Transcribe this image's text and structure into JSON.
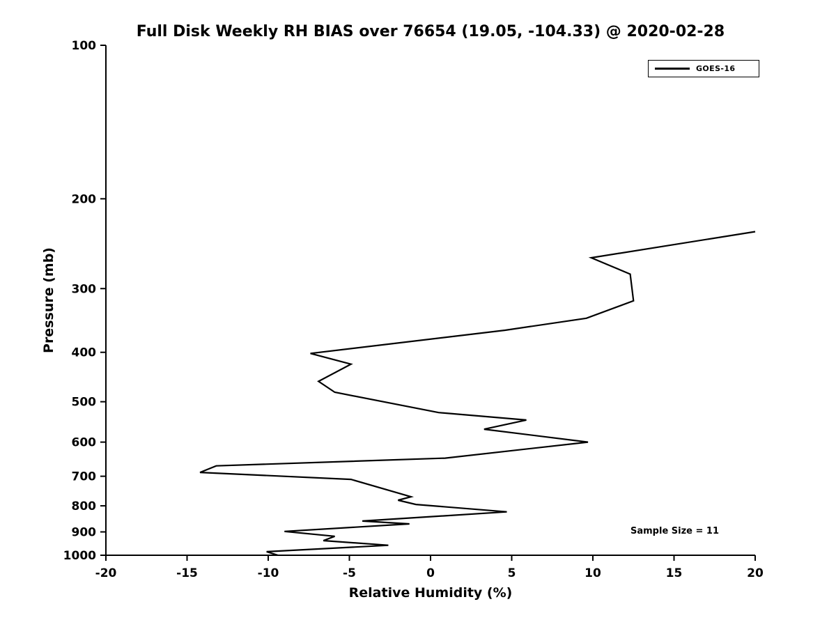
{
  "chart_data": {
    "type": "line",
    "title": "Full Disk Weekly RH BIAS over 76654 (19.05, -104.33) @ 2020-02-28",
    "xlabel": "Relative Humidity (%)",
    "ylabel": "Pressure (mb)",
    "xlim": [
      -20,
      20
    ],
    "x_ticks": [
      -20,
      -15,
      -10,
      -5,
      0,
      5,
      10,
      15,
      20
    ],
    "ylim": [
      100,
      1000
    ],
    "y_scale": "log",
    "y_direction": "reversed",
    "y_ticks": [
      100,
      200,
      300,
      400,
      500,
      600,
      700,
      800,
      900,
      1000
    ],
    "grid": false,
    "background": "#ffffff",
    "line_color": "#000000",
    "legend": {
      "position": "top-right",
      "entries": [
        "GOES-16"
      ]
    },
    "annotations": [
      {
        "text": "Sample Size = 11",
        "position": "bottom-right"
      }
    ],
    "series": [
      {
        "name": "GOES-16",
        "color": "#000000",
        "points": [
          [
            20.0,
            232
          ],
          [
            9.9,
            261
          ],
          [
            12.3,
            281
          ],
          [
            12.5,
            317
          ],
          [
            9.6,
            343
          ],
          [
            4.6,
            362
          ],
          [
            -7.4,
            402
          ],
          [
            -4.9,
            422
          ],
          [
            -6.9,
            456
          ],
          [
            -5.9,
            479
          ],
          [
            0.5,
            525
          ],
          [
            5.9,
            543
          ],
          [
            3.3,
            566
          ],
          [
            9.7,
            600
          ],
          [
            0.9,
            645
          ],
          [
            -13.2,
            668
          ],
          [
            -14.2,
            688
          ],
          [
            -4.9,
            710
          ],
          [
            -2.0,
            755
          ],
          [
            -1.2,
            768
          ],
          [
            -2.0,
            780
          ],
          [
            -0.9,
            795
          ],
          [
            4.7,
            822
          ],
          [
            -4.2,
            857
          ],
          [
            -1.3,
            868
          ],
          [
            -9.0,
            898
          ],
          [
            -5.9,
            918
          ],
          [
            -6.6,
            936
          ],
          [
            -2.6,
            956
          ],
          [
            -10.1,
            984
          ],
          [
            -9.4,
            1000
          ]
        ]
      }
    ]
  }
}
